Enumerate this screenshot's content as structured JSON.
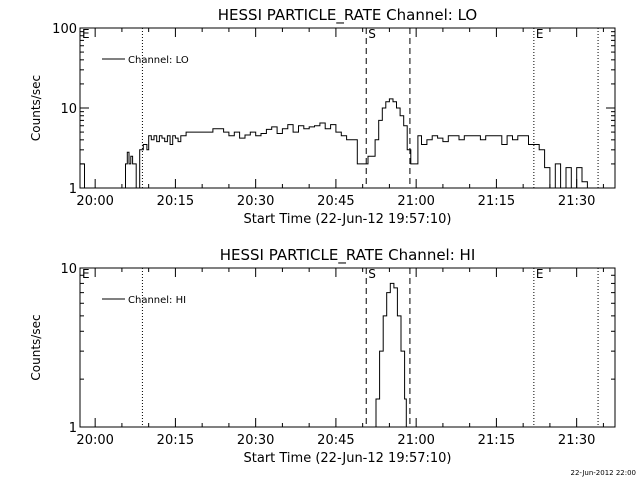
{
  "footer_timestamp": "22-Jun-2012 22:00",
  "chart_data": [
    {
      "type": "line",
      "title": "HESSI PARTICLE_RATE Channel: LO",
      "xlabel": "Start Time (22-Jun-12 19:57:10)",
      "ylabel": "Counts/sec",
      "yscale": "log",
      "ylim": [
        1,
        100
      ],
      "xlim": [
        "19:57:10",
        "21:37:10"
      ],
      "y_ticks": [
        {
          "value": 1,
          "label": "1"
        },
        {
          "value": 10,
          "label": "10"
        },
        {
          "value": 100,
          "label": "100"
        }
      ],
      "x_ticks": [
        "20:00",
        "20:15",
        "20:30",
        "20:45",
        "21:00",
        "21:15",
        "21:30"
      ],
      "legend": {
        "position": "top-left",
        "entries": [
          "Channel: LO"
        ]
      },
      "grid": false,
      "markers": [
        {
          "label": "E",
          "time": "19:57:10",
          "style": "dotted"
        },
        {
          "label": "",
          "time": "20:08:50",
          "style": "dotted"
        },
        {
          "label": "S",
          "time": "20:50:40",
          "style": "dashed"
        },
        {
          "label": "",
          "time": "20:58:50",
          "style": "dashed"
        },
        {
          "label": "E",
          "time": "21:22:00",
          "style": "dotted"
        },
        {
          "label": "",
          "time": "21:34:00",
          "style": "dotted"
        }
      ],
      "series": [
        {
          "name": "Channel: LO",
          "x": [
            "19:57:10",
            "19:58:00",
            "19:58:20",
            "19:58:40",
            "20:05:20",
            "20:05:40",
            "20:06:00",
            "20:06:20",
            "20:06:40",
            "20:07:00",
            "20:07:20",
            "20:07:40",
            "20:08:00",
            "20:08:20",
            "20:09:00",
            "20:09:40",
            "20:10:00",
            "20:10:30",
            "20:11:00",
            "20:11:30",
            "20:12:00",
            "20:12:30",
            "20:13:00",
            "20:13:30",
            "20:14:00",
            "20:14:30",
            "20:15:00",
            "20:15:30",
            "20:16:00",
            "20:16:30",
            "20:17:00",
            "20:17:30",
            "20:18:00",
            "20:19:00",
            "20:20:00",
            "20:21:00",
            "20:22:00",
            "20:23:00",
            "20:24:00",
            "20:25:00",
            "20:26:00",
            "20:27:00",
            "20:28:00",
            "20:29:00",
            "20:30:00",
            "20:31:00",
            "20:32:00",
            "20:33:00",
            "20:34:00",
            "20:35:00",
            "20:36:00",
            "20:37:00",
            "20:38:00",
            "20:39:00",
            "20:40:00",
            "20:41:00",
            "20:42:00",
            "20:43:00",
            "20:44:00",
            "20:45:00",
            "20:46:00",
            "20:47:00",
            "20:48:00",
            "20:49:00",
            "20:50:00",
            "20:51:00",
            "20:51:40",
            "20:52:20",
            "20:53:00",
            "20:53:40",
            "20:54:20",
            "20:55:00",
            "20:55:40",
            "20:56:20",
            "20:57:00",
            "20:57:40",
            "20:58:20",
            "20:59:00",
            "20:59:40",
            "21:00:20",
            "21:01:00",
            "21:02:00",
            "21:03:00",
            "21:04:00",
            "21:05:00",
            "21:06:00",
            "21:07:00",
            "21:08:00",
            "21:09:00",
            "21:10:00",
            "21:11:00",
            "21:12:00",
            "21:13:00",
            "21:14:00",
            "21:15:00",
            "21:16:00",
            "21:17:00",
            "21:18:00",
            "21:19:00",
            "21:20:00",
            "21:21:00",
            "21:22:00",
            "21:23:00",
            "21:24:00",
            "21:25:00",
            "21:26:00",
            "21:27:00",
            "21:28:00",
            "21:29:00",
            "21:30:00",
            "21:31:00",
            "21:32:00"
          ],
          "y": [
            2.0,
            1.0,
            1.0,
            1.0,
            1.0,
            2.0,
            2.8,
            2.0,
            2.5,
            2.0,
            2.0,
            1.0,
            1.0,
            3.0,
            3.5,
            3.0,
            4.5,
            4.0,
            4.5,
            3.8,
            4.5,
            4.2,
            3.8,
            4.5,
            3.5,
            4.5,
            4.2,
            3.8,
            4.5,
            4.5,
            5.0,
            5.0,
            5.0,
            5.0,
            5.0,
            5.0,
            5.5,
            5.5,
            5.0,
            4.5,
            5.0,
            4.2,
            4.6,
            5.0,
            4.5,
            4.8,
            5.4,
            5.8,
            4.8,
            5.5,
            6.2,
            5.0,
            6.0,
            5.5,
            5.8,
            6.0,
            6.5,
            5.5,
            6.2,
            5.0,
            4.5,
            4.0,
            4.0,
            2.0,
            2.0,
            2.5,
            2.5,
            4.0,
            7.0,
            10.0,
            12.0,
            13.0,
            12.0,
            10.0,
            8.0,
            6.0,
            3.0,
            2.0,
            2.0,
            4.5,
            3.5,
            4.0,
            4.5,
            4.2,
            3.8,
            4.5,
            4.5,
            4.0,
            4.5,
            4.5,
            4.5,
            4.0,
            4.5,
            4.5,
            4.5,
            3.5,
            4.5,
            4.0,
            4.5,
            4.5,
            3.5,
            3.5,
            3.0,
            1.8,
            1.0,
            2.0,
            1.0,
            1.8,
            1.0,
            1.8,
            1.2,
            1.0
          ]
        }
      ]
    },
    {
      "type": "line",
      "title": "HESSI PARTICLE_RATE Channel: HI",
      "xlabel": "Start Time (22-Jun-12 19:57:10)",
      "ylabel": "Counts/sec",
      "yscale": "log",
      "ylim": [
        1,
        10
      ],
      "xlim": [
        "19:57:10",
        "21:37:10"
      ],
      "y_ticks": [
        {
          "value": 1,
          "label": "1"
        },
        {
          "value": 10,
          "label": "10"
        }
      ],
      "x_ticks": [
        "20:00",
        "20:15",
        "20:30",
        "20:45",
        "21:00",
        "21:15",
        "21:30"
      ],
      "legend": {
        "position": "top-left",
        "entries": [
          "Channel: HI"
        ]
      },
      "grid": false,
      "markers": [
        {
          "label": "E",
          "time": "19:57:10",
          "style": "dotted"
        },
        {
          "label": "",
          "time": "20:08:50",
          "style": "dotted"
        },
        {
          "label": "S",
          "time": "20:50:40",
          "style": "dashed"
        },
        {
          "label": "",
          "time": "20:58:50",
          "style": "dashed"
        },
        {
          "label": "E",
          "time": "21:22:00",
          "style": "dotted"
        },
        {
          "label": "",
          "time": "21:34:00",
          "style": "dotted"
        }
      ],
      "series": [
        {
          "name": "Channel: HI",
          "x": [
            "20:51:50",
            "20:52:30",
            "20:53:10",
            "20:53:50",
            "20:54:30",
            "20:55:10",
            "20:55:50",
            "20:56:30",
            "20:57:10",
            "20:57:50",
            "20:58:10"
          ],
          "y": [
            1.0,
            1.5,
            3.0,
            5.0,
            7.0,
            8.0,
            7.5,
            5.0,
            3.0,
            1.5,
            1.0
          ]
        }
      ]
    }
  ]
}
